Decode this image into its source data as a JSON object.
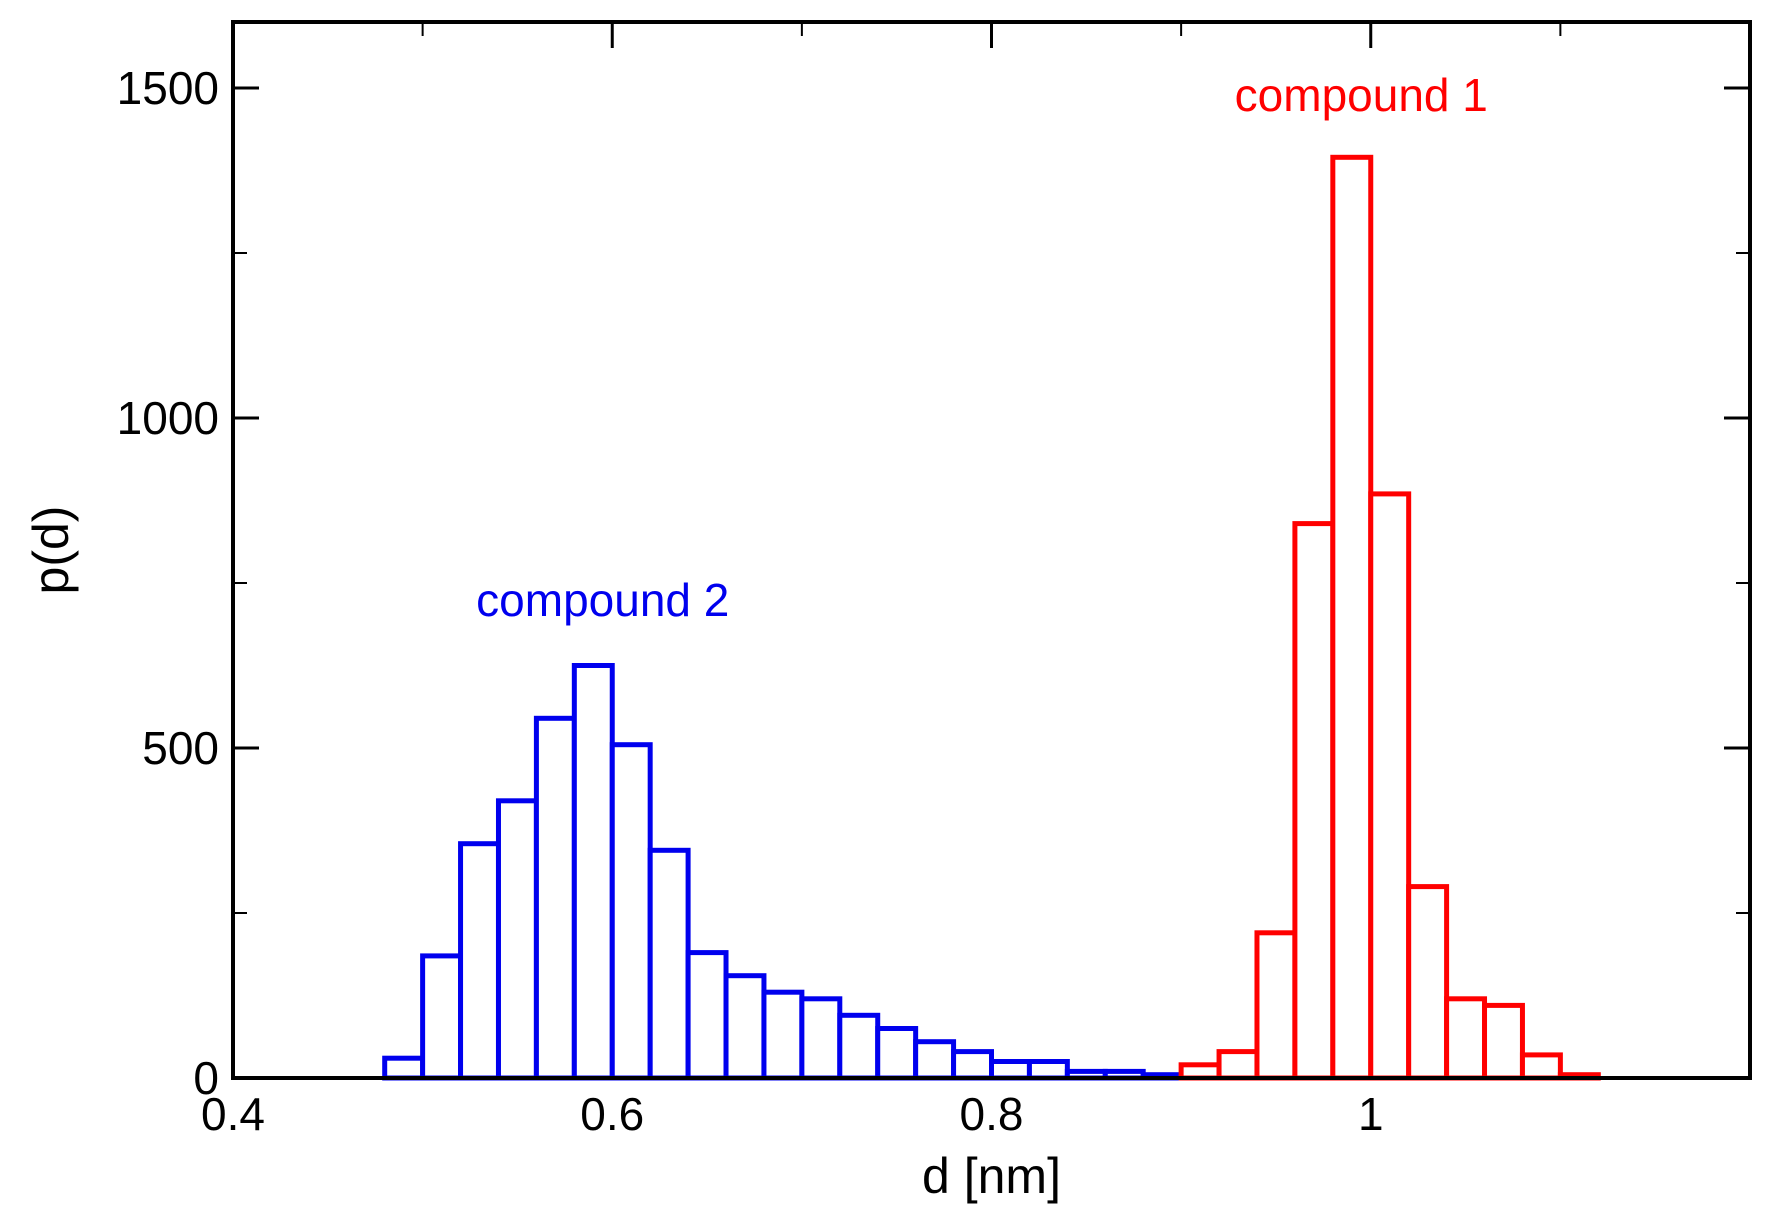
{
  "chart_data": {
    "type": "bar",
    "title": "",
    "xlabel": "d [nm]",
    "ylabel": "p(d)",
    "xlim": [
      0.4,
      1.2
    ],
    "ylim": [
      0,
      1600
    ],
    "x_ticks": [
      {
        "value": 0.4,
        "label": "0.4"
      },
      {
        "value": 0.6,
        "label": "0.6"
      },
      {
        "value": 0.8,
        "label": "0.8"
      },
      {
        "value": 1.0,
        "label": "1"
      }
    ],
    "y_ticks": [
      {
        "value": 0,
        "label": "0"
      },
      {
        "value": 500,
        "label": "500"
      },
      {
        "value": 1000,
        "label": "1000"
      },
      {
        "value": 1500,
        "label": "1500"
      }
    ],
    "bin_width": 0.02,
    "series": [
      {
        "name": "compound 2",
        "color": "#0000ee",
        "bin_starts": [
          0.48,
          0.5,
          0.52,
          0.54,
          0.56,
          0.58,
          0.6,
          0.62,
          0.64,
          0.66,
          0.68,
          0.7,
          0.72,
          0.74,
          0.76,
          0.78,
          0.8,
          0.82,
          0.84,
          0.86,
          0.88
        ],
        "values": [
          30,
          185,
          355,
          420,
          545,
          625,
          505,
          345,
          190,
          155,
          130,
          120,
          95,
          75,
          55,
          40,
          25,
          25,
          10,
          10,
          5
        ]
      },
      {
        "name": "compound 1",
        "color": "#ff0000",
        "bin_starts": [
          0.9,
          0.92,
          0.94,
          0.96,
          0.98,
          1.0,
          1.02,
          1.04,
          1.06,
          1.08,
          1.1
        ],
        "values": [
          20,
          40,
          220,
          840,
          1395,
          885,
          290,
          120,
          110,
          35,
          5
        ]
      }
    ],
    "annotations": [
      {
        "text": "compound 1",
        "color": "#ff0000",
        "x": 0.995,
        "y": 1465
      },
      {
        "text": "compound 2",
        "color": "#0000ee",
        "x": 0.595,
        "y": 700
      }
    ]
  }
}
